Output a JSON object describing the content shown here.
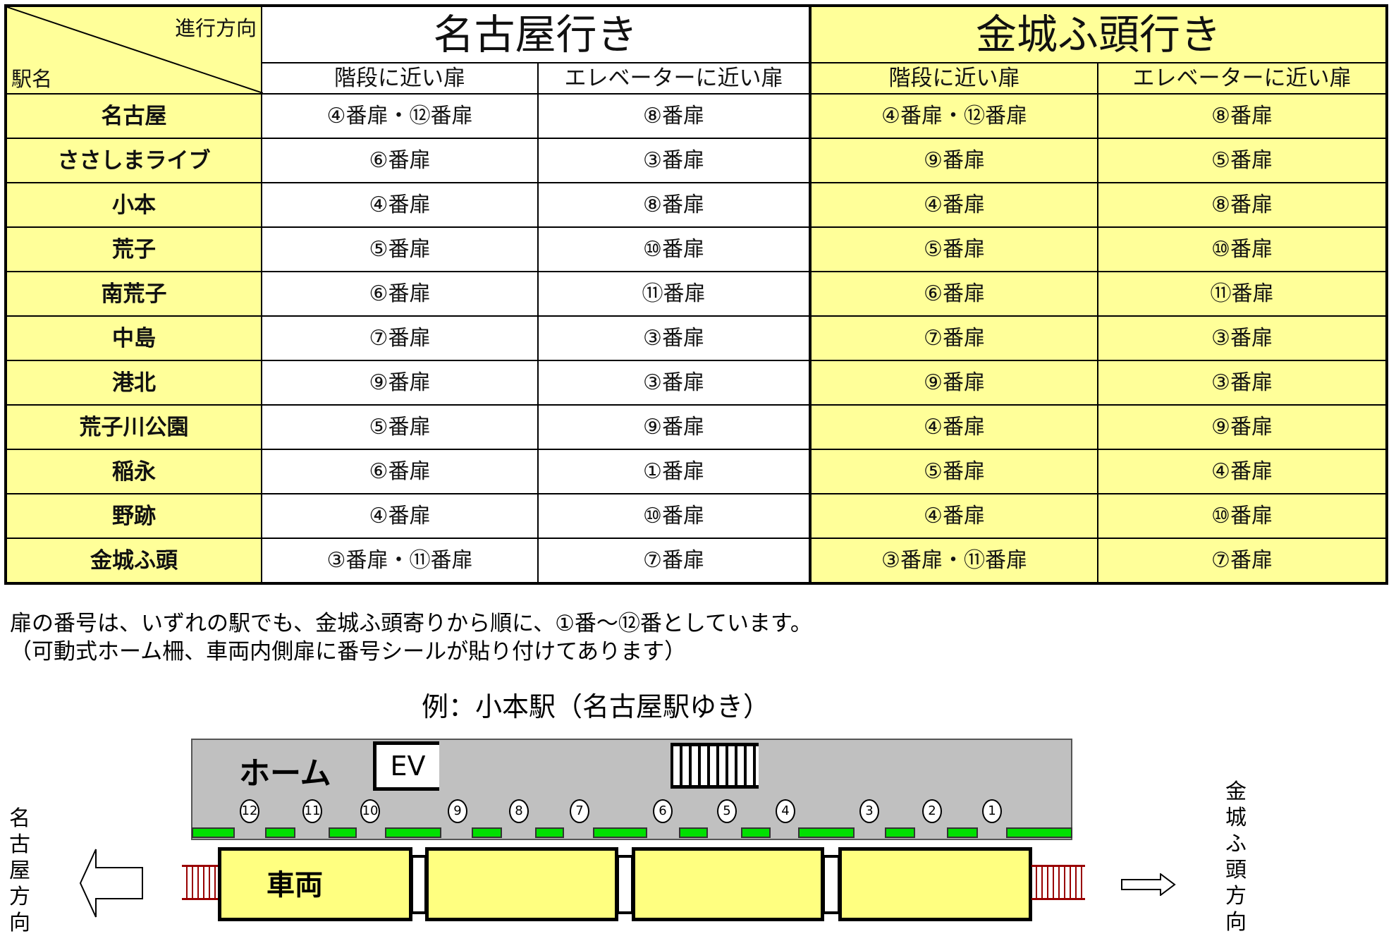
{
  "header": {
    "direction_label": "進行方向",
    "station_label": "駅名",
    "to_nagoya": "名古屋行き",
    "to_kinjo": "金城ふ頭行き",
    "stairs": "階段に近い扉",
    "elevator": "エレベーターに近い扉"
  },
  "rows": [
    [
      "名古屋",
      "④番扉・⑫番扉",
      "⑧番扉",
      "④番扉・⑫番扉",
      "⑧番扉"
    ],
    [
      "ささしまライブ",
      "⑥番扉",
      "③番扉",
      "⑨番扉",
      "⑤番扉"
    ],
    [
      "小本",
      "④番扉",
      "⑧番扉",
      "④番扉",
      "⑧番扉"
    ],
    [
      "荒子",
      "⑤番扉",
      "⑩番扉",
      "⑤番扉",
      "⑩番扉"
    ],
    [
      "南荒子",
      "⑥番扉",
      "⑪番扉",
      "⑥番扉",
      "⑪番扉"
    ],
    [
      "中島",
      "⑦番扉",
      "③番扉",
      "⑦番扉",
      "③番扉"
    ],
    [
      "港北",
      "⑨番扉",
      "③番扉",
      "⑨番扉",
      "③番扉"
    ],
    [
      "荒子川公園",
      "⑤番扉",
      "⑨番扉",
      "④番扉",
      "⑨番扉"
    ],
    [
      "稲永",
      "⑥番扉",
      "①番扉",
      "⑤番扉",
      "④番扉"
    ],
    [
      "野跡",
      "④番扉",
      "⑩番扉",
      "④番扉",
      "⑩番扉"
    ],
    [
      "金城ふ頭",
      "③番扉・⑪番扉",
      "⑦番扉",
      "③番扉・⑪番扉",
      "⑦番扉"
    ]
  ],
  "notes": [
    "扉の番号は、いずれの駅でも、金城ふ頭寄りから順に、①番～⑫番としています。",
    "（可動式ホーム柵、車両内側扉に番号シールが貼り付けてあります）"
  ],
  "diagram": {
    "title": "例：小本駅（名古屋駅ゆき）",
    "platform": "ホーム",
    "ev": "EV",
    "car": "車両",
    "left_dir": "名古屋方向",
    "right_dir": "金城ふ頭方向",
    "door_numbers": [
      "12",
      "11",
      "10",
      "9",
      "8",
      "7",
      "6",
      "5",
      "4",
      "3",
      "2",
      "1"
    ]
  },
  "colors": {
    "yellow": "#ffff99",
    "door_green": "#00e000",
    "platform_gray": "#c0c0c0",
    "track_red": "#990000"
  }
}
